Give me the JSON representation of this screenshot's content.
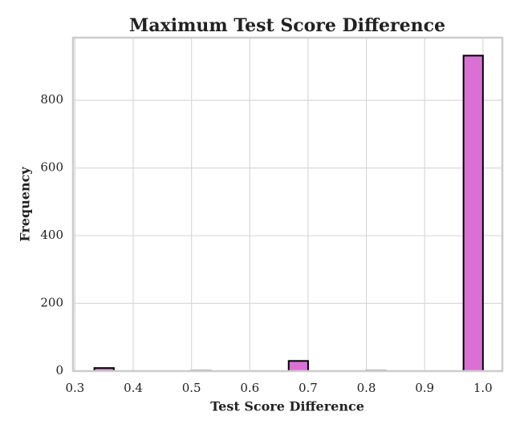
{
  "chart_data": {
    "type": "histogram",
    "title": "Maximum Test Score Difference",
    "x_label": "Test Score Difference",
    "y_label": "Frequency",
    "bins": [
      0.3333,
      0.3667,
      0.4,
      0.4333,
      0.4667,
      0.5,
      0.5333,
      0.5667,
      0.6,
      0.6333,
      0.6667,
      0.7,
      0.7333,
      0.7667,
      0.8,
      0.8333,
      0.8667,
      0.9,
      0.9333,
      0.9667,
      1.0
    ],
    "values": [
      9,
      0,
      0,
      0,
      0,
      1,
      0,
      0,
      0,
      0,
      30,
      0,
      0,
      0,
      1,
      0,
      0,
      0,
      0,
      932
    ],
    "color": "#da70d6",
    "edge_color": "#000000",
    "xlim": [
      0.2967,
      1.0333
    ],
    "xticks": [
      0.3,
      0.4,
      0.5,
      0.6,
      0.7,
      0.8,
      0.9,
      {
        "value": 1,
        "label": "1.0"
      }
    ],
    "ylim": [
      0,
      985
    ],
    "yticks": [
      0,
      200,
      400,
      600,
      800
    ],
    "grid": true
  }
}
